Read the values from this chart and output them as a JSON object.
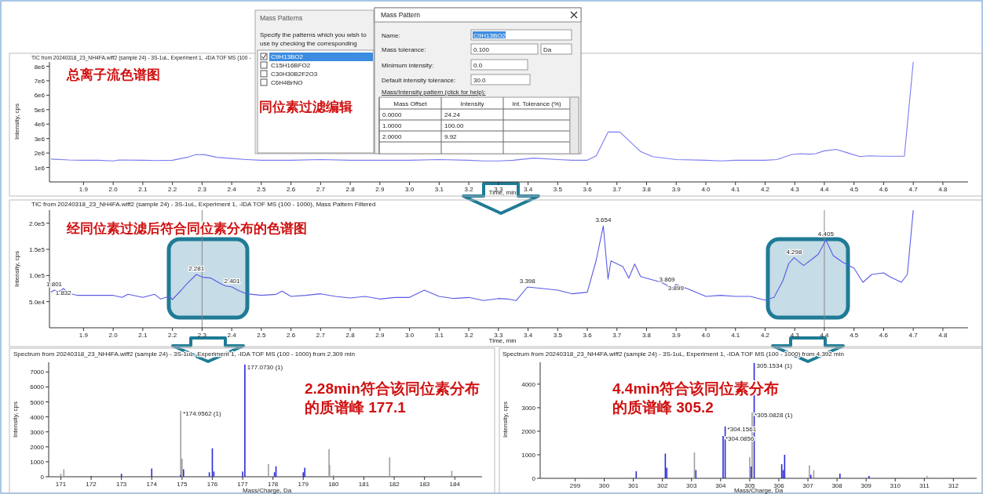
{
  "chart_data": [
    {
      "type": "line",
      "title": "TIC from 20240318_23_NH4FA.wiff2 (sample 24) - 3S-1uL, Experiment 1, -IDA TOF MS (100 -",
      "xlabel": "Time, min",
      "ylabel": "Intensity, cps",
      "xlim": [
        1.785,
        4.885
      ],
      "ylim": [
        0,
        8300000
      ],
      "xticks": [
        1.9,
        {
          "value": 2,
          "label": "2.0"
        },
        2.1,
        2.2,
        2.3,
        2.4,
        2.5,
        2.6,
        2.7,
        2.8,
        2.9,
        {
          "value": 3,
          "label": "3.0"
        },
        3.1,
        3.2,
        3.3,
        3.4,
        3.5,
        3.6,
        3.7,
        3.8,
        3.9,
        {
          "value": 4,
          "label": "4.0"
        },
        4.1,
        4.2,
        4.3,
        4.4,
        4.5,
        4.6,
        4.7,
        4.8
      ],
      "yticks": [
        {
          "value": 1000000,
          "label": "1e6"
        },
        {
          "value": 2000000,
          "label": "2e6"
        },
        {
          "value": 3000000,
          "label": "3e6"
        },
        {
          "value": 4000000,
          "label": "4e6"
        },
        {
          "value": 5000000,
          "label": "5e6"
        },
        {
          "value": 6000000,
          "label": "6e6"
        },
        {
          "value": 7000000,
          "label": "7e6"
        },
        {
          "value": 8000000,
          "label": "8e6"
        }
      ],
      "series": [
        {
          "color": "#7b7bf0",
          "x": [
            1.79,
            1.85,
            1.9,
            1.95,
            2.0,
            2.02,
            2.1,
            2.15,
            2.2,
            2.25,
            2.28,
            2.31,
            2.35,
            2.4,
            2.45,
            2.5,
            2.6,
            2.7,
            2.8,
            2.9,
            3.0,
            3.1,
            3.2,
            3.25,
            3.3,
            3.35,
            3.42,
            3.5,
            3.55,
            3.6,
            3.63,
            3.67,
            3.71,
            3.78,
            3.82,
            3.9,
            4.0,
            4.05,
            4.1,
            4.2,
            4.24,
            4.29,
            4.32,
            4.35,
            4.37,
            4.4,
            4.44,
            4.48,
            4.52,
            4.55,
            4.6,
            4.67,
            4.7
          ],
          "values": [
            1580000,
            1520000,
            1500000,
            1500000,
            1450000,
            1520000,
            1500000,
            1480000,
            1500000,
            1700000,
            1900000,
            1880000,
            1700000,
            1620000,
            1550000,
            1500000,
            1500000,
            1550000,
            1500000,
            1500000,
            1500000,
            1550000,
            1500000,
            1450000,
            1450000,
            1500000,
            1650000,
            1550000,
            1500000,
            1500000,
            1800000,
            3450000,
            3450000,
            2100000,
            1750000,
            1550000,
            1500000,
            1450000,
            1500000,
            1500000,
            1550000,
            1900000,
            1950000,
            1920000,
            1950000,
            2150000,
            2250000,
            2000000,
            1750000,
            1800000,
            1780000,
            1780000,
            8300000
          ]
        }
      ],
      "annotations": [
        "总离子流色谱图",
        "同位素过滤编辑"
      ]
    },
    {
      "type": "line",
      "title": "TIC from 20240318_23_NH4FA.wiff2 (sample 24) - 3S-1uL, Experiment 1, -IDA TOF MS (100 - 1000), Mass Pattern Filtered",
      "xlabel": "Time, min",
      "ylabel": "Intensity, cps",
      "xlim": [
        1.785,
        4.885
      ],
      "ylim": [
        0,
        225000
      ],
      "xticks": [
        1.9,
        {
          "value": 2,
          "label": "2.0"
        },
        2.1,
        2.2,
        2.3,
        2.4,
        2.5,
        2.6,
        2.7,
        2.8,
        2.9,
        {
          "value": 3,
          "label": "3.0"
        },
        3.1,
        3.2,
        3.3,
        3.4,
        3.5,
        3.6,
        3.7,
        3.8,
        3.9,
        {
          "value": 4,
          "label": "4.0"
        },
        4.1,
        4.2,
        4.3,
        4.4,
        4.5,
        4.6,
        4.7,
        4.8
      ],
      "yticks": [
        {
          "value": 50000,
          "label": "5.0e4"
        },
        {
          "value": 100000,
          "label": "1.0e5"
        },
        {
          "value": 150000,
          "label": "1.5e5"
        },
        {
          "value": 200000,
          "label": "2.0e5"
        }
      ],
      "series": [
        {
          "color": "#5a5ae6",
          "x": [
            1.79,
            1.801,
            1.82,
            1.832,
            1.85,
            1.88,
            1.95,
            2.0,
            2.03,
            2.05,
            2.1,
            2.14,
            2.16,
            2.19,
            2.2,
            2.23,
            2.25,
            2.281,
            2.3,
            2.33,
            2.36,
            2.38,
            2.401,
            2.42,
            2.45,
            2.5,
            2.55,
            2.57,
            2.6,
            2.65,
            2.7,
            2.75,
            2.8,
            2.85,
            2.9,
            2.95,
            3.0,
            3.05,
            3.1,
            3.15,
            3.2,
            3.25,
            3.3,
            3.33,
            3.36,
            3.398,
            3.45,
            3.5,
            3.55,
            3.6,
            3.63,
            3.654,
            3.67,
            3.68,
            3.72,
            3.74,
            3.76,
            3.78,
            3.85,
            3.869,
            3.88,
            3.899,
            3.95,
            4.0,
            4.05,
            4.1,
            4.15,
            4.2,
            4.23,
            4.26,
            4.28,
            4.298,
            4.33,
            4.36,
            4.38,
            4.405,
            4.43,
            4.46,
            4.5,
            4.53,
            4.56,
            4.6,
            4.62,
            4.66,
            4.68,
            4.7
          ],
          "values": [
            68000,
            72000,
            70000,
            75000,
            66000,
            62000,
            62000,
            62000,
            58000,
            64000,
            58000,
            64000,
            55000,
            60000,
            54000,
            72000,
            85000,
            102000,
            97000,
            95000,
            85000,
            80000,
            78000,
            72000,
            65000,
            62000,
            64000,
            70000,
            60000,
            62000,
            65000,
            60000,
            57000,
            60000,
            55000,
            58000,
            58000,
            72000,
            60000,
            56000,
            58000,
            52000,
            56000,
            55000,
            52000,
            78000,
            75000,
            72000,
            65000,
            68000,
            129000,
            195000,
            93000,
            128000,
            117000,
            95000,
            122000,
            98000,
            87000,
            81000,
            72000,
            83000,
            72000,
            60000,
            62000,
            60000,
            60000,
            53000,
            58000,
            90000,
            123000,
            134000,
            119000,
            132000,
            141000,
            168000,
            138000,
            126000,
            114000,
            87000,
            102000,
            105000,
            98000,
            87000,
            102000,
            225000
          ]
        }
      ],
      "ref_lines": [
        {
          "axis": "x",
          "value": 2.3,
          "color": "#888888"
        },
        {
          "axis": "x",
          "value": 4.4,
          "color": "#888888"
        }
      ],
      "annotations": [
        "经同位素过滤后符合同位素分布的色谱图",
        {
          "text": "1.801",
          "x": 1.801,
          "y": 72000
        },
        {
          "text": "1.832",
          "x": 1.832,
          "y": 75000
        },
        {
          "text": "2.281",
          "x": 2.281,
          "y": 102000
        },
        {
          "text": "2.401",
          "x": 2.401,
          "y": 78000
        },
        {
          "text": "3.398",
          "x": 3.398,
          "y": 78000
        },
        {
          "text": "3.654",
          "x": 3.654,
          "y": 195000
        },
        {
          "text": "3.869",
          "x": 3.869,
          "y": 81000
        },
        {
          "text": "3.899",
          "x": 3.899,
          "y": 83000
        },
        {
          "text": "4.298",
          "x": 4.298,
          "y": 134000
        },
        {
          "text": "4.405",
          "x": 4.405,
          "y": 168000
        }
      ]
    },
    {
      "type": "bar",
      "title": "Spectrum from 20240318_23_NH4FA.wiff2 (sample 24) - 3S-1uL, Experiment 1, -IDA TOF MS (100 - 1000) from 2.309 min",
      "xlabel": "Mass/Charge, Da",
      "ylabel": "Intensity, cps",
      "xlim": [
        170.6,
        184.9
      ],
      "ylim": [
        0,
        7650
      ],
      "xticks": [
        171,
        172,
        173,
        174,
        175,
        176,
        177,
        178,
        179,
        180,
        181,
        182,
        183,
        184
      ],
      "yticks": [
        0,
        1000,
        2000,
        3000,
        4000,
        5000,
        6000,
        7000
      ],
      "series": [
        {
          "color": "#a0a0a0",
          "x": [
            171.0,
            171.1,
            174.9562,
            175.0,
            177.85,
            179.85,
            179.87,
            180.0,
            181.85,
            183.9
          ],
          "values": [
            200,
            500,
            4400,
            1200,
            850,
            1850,
            800,
            100,
            1300,
            400
          ]
        },
        {
          "color": "#2b2bd6",
          "x": [
            172.0,
            173.0,
            174.0,
            174.95,
            175.05,
            175.9,
            176.0,
            176.05,
            177.0,
            177.073,
            178.05,
            178.1,
            179.0,
            179.05
          ],
          "values": [
            50,
            200,
            550,
            100,
            500,
            300,
            1900,
            350,
            350,
            7500,
            300,
            700,
            300,
            600
          ]
        }
      ],
      "annotations": [
        "2.28min符合该同位素分布的质谱峰 177.1",
        {
          "text": "177.0730 (1)",
          "x": 177.073,
          "y": 7500
        },
        {
          "text": "*174.9562 (1)",
          "x": 174.9562,
          "y": 4400
        }
      ]
    },
    {
      "type": "bar",
      "title": "Spectrum from 20240318_23_NH4FA.wiff2 (sample 24) - 3S-1uL, Experiment 1, -IDA TOF MS (100 - 1000) from 4.392 min",
      "xlabel": "Mass/Charge, Da",
      "ylabel": "Intensity, cps",
      "xlim": [
        297.8,
        312.8
      ],
      "ylim": [
        0,
        4930
      ],
      "xticks": [
        299,
        300,
        301,
        302,
        303,
        304,
        305,
        306,
        307,
        308,
        309,
        310,
        311,
        312
      ],
      "yticks": [
        0,
        1000,
        2000,
        3000,
        4000
      ],
      "series": [
        {
          "color": "#a0a0a0",
          "x": [
            303.1,
            305.0,
            305.0828,
            307.05,
            307.2,
            311.1
          ],
          "values": [
            1100,
            900,
            2800,
            550,
            350,
            100
          ]
        },
        {
          "color": "#2b2bd6",
          "x": [
            301.1,
            302.1,
            302.15,
            303.15,
            304.0856,
            304.1561,
            305.05,
            305.1534,
            306.1,
            306.15,
            306.2,
            307.1,
            308.1,
            309.1
          ],
          "values": [
            300,
            1050,
            450,
            350,
            1800,
            2200,
            500,
            4900,
            600,
            350,
            1000,
            150,
            200,
            100
          ]
        }
      ],
      "annotations": [
        "4.4min符合该同位素分布的质谱峰 305.2",
        {
          "text": "305.1534 (1)",
          "x": 305.1534,
          "y": 4900
        },
        {
          "text": "*305.0828 (1)",
          "x": 305.0828,
          "y": 2800
        },
        {
          "text": "*304.1561",
          "x": 304.1561,
          "y": 2200
        },
        {
          "text": "*304.0856",
          "x": 304.0856,
          "y": 1800
        }
      ]
    },
    {
      "type": "other",
      "title": "Mass Patterns",
      "annotations": [
        "Specify the patterns which you wish to",
        "use by checking the corresponding",
        "C9H13BO2",
        "C15H16BFO2",
        "C30H30B2F2O3",
        "C6H4BrNO"
      ]
    },
    {
      "type": "other",
      "title": "Mass Pattern",
      "annotations": [
        "Name:",
        "C9H13BO2",
        "Mass tolerance:",
        "0.100",
        "Da",
        "Minimum intensity:",
        "0.0",
        "Default intensity tolerance:",
        "30.0",
        "Mass/Intensity pattern (click for help):",
        "Mass Offset",
        "Intensity",
        "Int. Tolerance (%)",
        "0.0000",
        "24.24",
        "1.0000",
        "100.00",
        "2.0000",
        "9.92"
      ]
    }
  ]
}
